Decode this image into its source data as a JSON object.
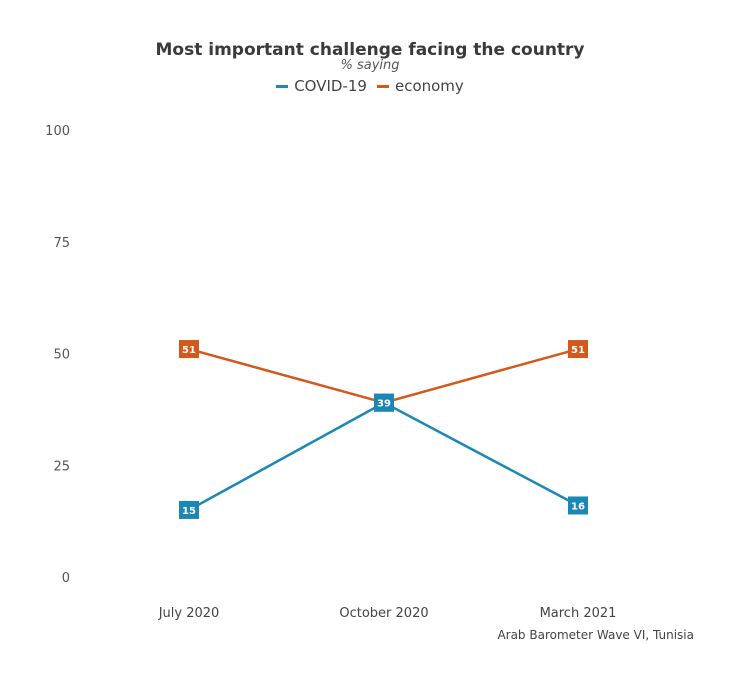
{
  "chart_data": {
    "type": "line",
    "title": "Most important challenge facing the country",
    "subtitle": "% saying",
    "categories": [
      "July 2020",
      "October 2020",
      "March 2021"
    ],
    "series": [
      {
        "name": "COVID-19",
        "values": [
          15,
          39,
          16
        ],
        "color": "#1a87b4"
      },
      {
        "name": "economy",
        "values": [
          51,
          39,
          51
        ],
        "color": "#d4581c"
      }
    ],
    "ylim": [
      0,
      100
    ],
    "yticks": [
      0,
      25,
      50,
      75,
      100
    ],
    "grid": false,
    "legend_position": "top",
    "source": "Arab Barometer Wave VI, Tunisia"
  }
}
